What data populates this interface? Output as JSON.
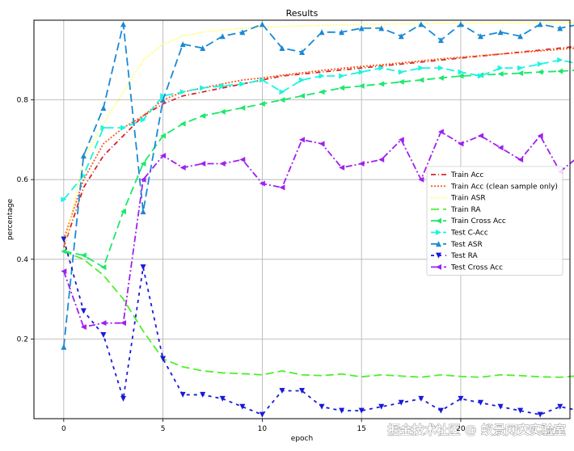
{
  "watermark": "掘金技术社区 @ 蚁景网安实验室",
  "chart_data": {
    "type": "line",
    "title": "Results",
    "xlabel": "epoch",
    "ylabel": "percentage",
    "xlim": [
      -1.5,
      25.5
    ],
    "ylim": [
      0.0,
      1.0
    ],
    "xticks": [
      0,
      5,
      10,
      15,
      20
    ],
    "yticks": [
      0.2,
      0.4,
      0.6,
      0.8
    ],
    "grid": true,
    "legend_position": "center-right",
    "series": [
      {
        "name": "Train Acc",
        "color": "#d62728",
        "dash": "6 3 1 3",
        "marker": "none",
        "values": [
          0.43,
          0.58,
          0.66,
          0.71,
          0.76,
          0.79,
          0.81,
          0.82,
          0.83,
          0.84,
          0.85,
          0.86,
          0.865,
          0.87,
          0.875,
          0.88,
          0.885,
          0.89,
          0.895,
          0.9,
          0.905,
          0.91,
          0.915,
          0.92,
          0.925,
          0.93,
          0.935,
          0.937,
          0.938,
          0.94
        ]
      },
      {
        "name": "Train Acc (clean sample only)",
        "color": "#ff5a1f",
        "dash": "2 2",
        "marker": "none",
        "values": [
          0.45,
          0.6,
          0.69,
          0.73,
          0.76,
          0.8,
          0.82,
          0.83,
          0.84,
          0.85,
          0.855,
          0.862,
          0.868,
          0.874,
          0.879,
          0.884,
          0.888,
          0.893,
          0.898,
          0.903,
          0.907,
          0.911,
          0.915,
          0.919,
          0.923,
          0.927,
          0.931,
          0.934,
          0.937,
          0.94
        ]
      },
      {
        "name": "Train ASR",
        "color": "#ffff55",
        "dash": "1.5 2",
        "marker": "none",
        "values": [
          0.42,
          0.65,
          0.74,
          0.82,
          0.9,
          0.94,
          0.96,
          0.97,
          0.975,
          0.98,
          0.982,
          0.984,
          0.986,
          0.987,
          0.988,
          0.989,
          0.99,
          0.991,
          0.991,
          0.992,
          0.992,
          0.993,
          0.993,
          0.993,
          0.994,
          0.994,
          0.994,
          0.994,
          0.995,
          0.995
        ]
      },
      {
        "name": "Train RA",
        "color": "#4cf02c",
        "dash": "10 5",
        "marker": "none",
        "values": [
          0.42,
          0.4,
          0.36,
          0.3,
          0.22,
          0.15,
          0.13,
          0.12,
          0.115,
          0.113,
          0.11,
          0.12,
          0.11,
          0.108,
          0.112,
          0.105,
          0.11,
          0.107,
          0.104,
          0.11,
          0.106,
          0.104,
          0.11,
          0.108,
          0.105,
          0.104,
          0.108,
          0.105,
          0.107,
          0.104
        ]
      },
      {
        "name": "Train Cross Acc",
        "color": "#1de86b",
        "dash": "10 5",
        "marker": "triangle-left",
        "values": [
          0.42,
          0.41,
          0.38,
          0.52,
          0.64,
          0.71,
          0.74,
          0.76,
          0.77,
          0.78,
          0.79,
          0.8,
          0.81,
          0.82,
          0.83,
          0.835,
          0.84,
          0.845,
          0.85,
          0.855,
          0.86,
          0.862,
          0.865,
          0.867,
          0.87,
          0.872,
          0.875,
          0.878,
          0.882,
          0.888
        ]
      },
      {
        "name": "Test C-Acc",
        "color": "#19f5e0",
        "dash": "10 5",
        "marker": "triangle-right",
        "values": [
          0.55,
          0.61,
          0.73,
          0.73,
          0.75,
          0.81,
          0.82,
          0.83,
          0.835,
          0.84,
          0.85,
          0.82,
          0.85,
          0.86,
          0.86,
          0.87,
          0.88,
          0.87,
          0.88,
          0.88,
          0.87,
          0.86,
          0.88,
          0.88,
          0.89,
          0.9,
          0.89,
          0.89,
          0.9,
          0.9
        ]
      },
      {
        "name": "Test ASR",
        "color": "#1a8ad4",
        "dash": "10 5",
        "marker": "triangle-up",
        "values": [
          0.18,
          0.66,
          0.78,
          0.99,
          0.52,
          0.8,
          0.94,
          0.93,
          0.96,
          0.97,
          0.99,
          0.93,
          0.92,
          0.97,
          0.97,
          0.98,
          0.98,
          0.96,
          0.99,
          0.95,
          0.99,
          0.96,
          0.97,
          0.96,
          0.99,
          0.98,
          0.99,
          0.97,
          0.98,
          0.98
        ]
      },
      {
        "name": "Test RA",
        "color": "#1a1ad8",
        "dash": "4 5",
        "marker": "triangle-down",
        "values": [
          0.45,
          0.27,
          0.21,
          0.05,
          0.38,
          0.15,
          0.06,
          0.06,
          0.05,
          0.03,
          0.01,
          0.07,
          0.07,
          0.03,
          0.02,
          0.02,
          0.03,
          0.04,
          0.05,
          0.02,
          0.05,
          0.04,
          0.03,
          0.02,
          0.01,
          0.03,
          0.02,
          0.02,
          0.03,
          0.02
        ]
      },
      {
        "name": "Test Cross Acc",
        "color": "#a020f0",
        "dash": "8 3 2 3",
        "marker": "triangle-left",
        "values": [
          0.37,
          0.23,
          0.24,
          0.24,
          0.6,
          0.66,
          0.63,
          0.64,
          0.64,
          0.65,
          0.59,
          0.58,
          0.7,
          0.69,
          0.63,
          0.64,
          0.65,
          0.7,
          0.6,
          0.72,
          0.69,
          0.71,
          0.68,
          0.65,
          0.71,
          0.62,
          0.66,
          0.68,
          0.67,
          0.66
        ]
      }
    ]
  }
}
